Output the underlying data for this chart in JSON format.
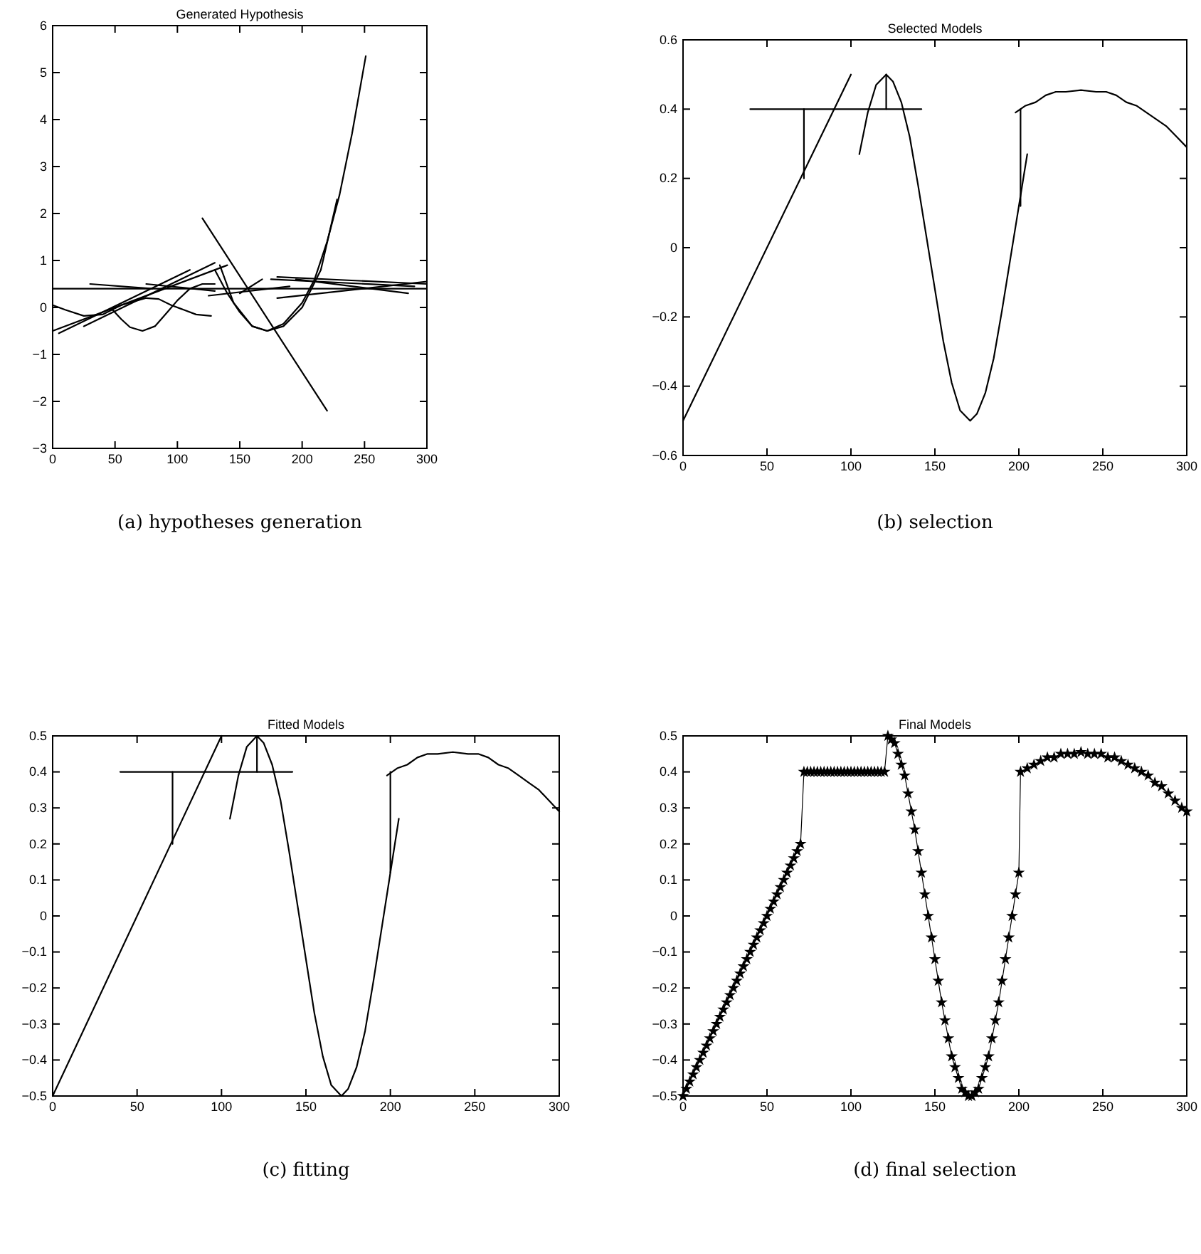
{
  "chart_data": [
    {
      "type": "line",
      "title": "Generated Hypothesis",
      "annotations": [
        "(a) hypotheses generation"
      ],
      "color": "#000000",
      "xlim": [
        0,
        300
      ],
      "xticks": [
        0,
        50,
        100,
        150,
        200,
        250,
        300
      ],
      "ylim": [
        -3,
        6
      ],
      "yticks": [
        {
          "value": -3,
          "label": "−3"
        },
        {
          "value": -2,
          "label": "−2"
        },
        {
          "value": -1,
          "label": "−1"
        },
        0,
        1,
        2,
        3,
        4,
        5,
        6
      ],
      "series": [
        {
          "x": [
            0,
            300
          ],
          "values": [
            0.4,
            0.4
          ]
        },
        {
          "x": [
            0,
            140
          ],
          "values": [
            -0.5,
            0.9
          ]
        },
        {
          "x": [
            5,
            110
          ],
          "values": [
            -0.55,
            0.8
          ]
        },
        {
          "x": [
            25,
            130
          ],
          "values": [
            -0.4,
            0.95
          ]
        },
        {
          "x": [
            48,
            55,
            62,
            72,
            82,
            92,
            100,
            110,
            120,
            130
          ],
          "values": [
            -0.05,
            -0.25,
            -0.42,
            -0.5,
            -0.4,
            -0.1,
            0.15,
            0.4,
            0.5,
            0.5
          ]
        },
        {
          "x": [
            0,
            10,
            25,
            40,
            55,
            75,
            85,
            95,
            105,
            115,
            127
          ],
          "values": [
            0.05,
            -0.05,
            -0.18,
            -0.15,
            0.05,
            0.2,
            0.18,
            0.05,
            -0.05,
            -0.15,
            -0.18
          ]
        },
        {
          "x": [
            120,
            220
          ],
          "values": [
            1.9,
            -2.2
          ]
        },
        {
          "x": [
            130,
            140,
            150,
            160,
            172,
            185,
            200,
            210,
            220,
            230,
            240,
            251
          ],
          "values": [
            0.8,
            0.3,
            -0.1,
            -0.4,
            -0.5,
            -0.35,
            0.1,
            0.6,
            1.4,
            2.4,
            3.7,
            5.35
          ]
        },
        {
          "x": [
            134,
            145,
            160,
            172,
            185,
            200,
            215,
            228
          ],
          "values": [
            0.9,
            0.1,
            -0.4,
            -0.5,
            -0.4,
            0,
            0.8,
            2.3
          ]
        },
        {
          "x": [
            30,
            80
          ],
          "values": [
            0.5,
            0.4
          ]
        },
        {
          "x": [
            75,
            130
          ],
          "values": [
            0.5,
            0.35
          ]
        },
        {
          "x": [
            125,
            190
          ],
          "values": [
            0.25,
            0.45
          ]
        },
        {
          "x": [
            150,
            168
          ],
          "values": [
            0.3,
            0.6
          ]
        },
        {
          "x": [
            180,
            300
          ],
          "values": [
            0.65,
            0.5
          ]
        },
        {
          "x": [
            175,
            290
          ],
          "values": [
            0.6,
            0.45
          ]
        },
        {
          "x": [
            195,
            285
          ],
          "values": [
            0.6,
            0.3
          ]
        },
        {
          "x": [
            180,
            300
          ],
          "values": [
            0.2,
            0.55
          ]
        }
      ]
    },
    {
      "type": "line",
      "title": "Selected Models",
      "annotations": [
        "(b) selection"
      ],
      "color": "#000000",
      "xlim": [
        0,
        300
      ],
      "xticks": [
        0,
        50,
        100,
        150,
        200,
        250,
        300
      ],
      "ylim": [
        -0.6,
        0.6
      ],
      "yticks": [
        {
          "value": -0.6,
          "label": "−0.6"
        },
        {
          "value": -0.4,
          "label": "−0.4"
        },
        {
          "value": -0.2,
          "label": "−0.2"
        },
        0,
        0.2,
        0.4,
        0.6
      ],
      "series": [
        {
          "x": [
            0,
            100
          ],
          "values": [
            -0.5,
            0.5
          ]
        },
        {
          "x": [
            40,
            142
          ],
          "values": [
            0.4,
            0.4
          ]
        },
        {
          "x": [
            72,
            72
          ],
          "values": [
            0.2,
            0.4
          ]
        },
        {
          "x": [
            121,
            121
          ],
          "values": [
            0.4,
            0.5
          ]
        },
        {
          "x": [
            105,
            110,
            115,
            121,
            125,
            130,
            135,
            140,
            145,
            150,
            155,
            160,
            165,
            171,
            175,
            180,
            185,
            190,
            195,
            200,
            205
          ],
          "values": [
            0.27,
            0.39,
            0.47,
            0.5,
            0.48,
            0.42,
            0.32,
            0.18,
            0.03,
            -0.12,
            -0.27,
            -0.39,
            -0.47,
            -0.5,
            -0.48,
            -0.42,
            -0.32,
            -0.18,
            -0.03,
            0.12,
            0.27
          ]
        },
        {
          "x": [
            201,
            201
          ],
          "values": [
            0.12,
            0.4
          ]
        },
        {
          "x": [
            198,
            204,
            210,
            216,
            222,
            228,
            237,
            246,
            252,
            258,
            264,
            270,
            276,
            282,
            288,
            294,
            300
          ],
          "values": [
            0.39,
            0.41,
            0.42,
            0.44,
            0.45,
            0.45,
            0.455,
            0.45,
            0.45,
            0.44,
            0.42,
            0.41,
            0.39,
            0.37,
            0.35,
            0.32,
            0.29
          ]
        }
      ]
    },
    {
      "type": "line",
      "title": "Fitted Models",
      "annotations": [
        "(c) fitting"
      ],
      "color": "#000000",
      "xlim": [
        0,
        300
      ],
      "xticks": [
        0,
        50,
        100,
        150,
        200,
        250,
        300
      ],
      "ylim": [
        -0.5,
        0.5
      ],
      "yticks": [
        {
          "value": -0.5,
          "label": "−0.5"
        },
        {
          "value": -0.4,
          "label": "−0.4"
        },
        {
          "value": -0.3,
          "label": "−0.3"
        },
        {
          "value": -0.2,
          "label": "−0.2"
        },
        {
          "value": -0.1,
          "label": "−0.1"
        },
        0,
        0.1,
        0.2,
        0.3,
        0.4,
        0.5
      ],
      "series": [
        {
          "x": [
            0,
            100
          ],
          "values": [
            -0.5,
            0.5
          ]
        },
        {
          "x": [
            40,
            142
          ],
          "values": [
            0.4,
            0.4
          ]
        },
        {
          "x": [
            71,
            71
          ],
          "values": [
            0.2,
            0.4
          ]
        },
        {
          "x": [
            121,
            121
          ],
          "values": [
            0.4,
            0.5
          ]
        },
        {
          "x": [
            105,
            110,
            115,
            121,
            125,
            130,
            135,
            140,
            145,
            150,
            155,
            160,
            165,
            171,
            175,
            180,
            185,
            190,
            195,
            200,
            205
          ],
          "values": [
            0.27,
            0.39,
            0.47,
            0.5,
            0.48,
            0.42,
            0.32,
            0.18,
            0.03,
            -0.12,
            -0.27,
            -0.39,
            -0.47,
            -0.5,
            -0.48,
            -0.42,
            -0.32,
            -0.18,
            -0.03,
            0.12,
            0.27
          ]
        },
        {
          "x": [
            200,
            200
          ],
          "values": [
            0.12,
            0.4
          ]
        },
        {
          "x": [
            198,
            204,
            210,
            216,
            222,
            228,
            237,
            246,
            252,
            258,
            264,
            270,
            276,
            282,
            288,
            294,
            300
          ],
          "values": [
            0.39,
            0.41,
            0.42,
            0.44,
            0.45,
            0.45,
            0.455,
            0.45,
            0.45,
            0.44,
            0.42,
            0.41,
            0.39,
            0.37,
            0.35,
            0.32,
            0.29
          ]
        }
      ]
    },
    {
      "type": "line",
      "title": "Final Models",
      "annotations": [
        "(d) final selection"
      ],
      "color": "#000000",
      "marker": "star",
      "xlim": [
        0,
        300
      ],
      "xticks": [
        0,
        50,
        100,
        150,
        200,
        250,
        300
      ],
      "ylim": [
        -0.5,
        0.5
      ],
      "yticks": [
        {
          "value": -0.5,
          "label": "−0.5"
        },
        {
          "value": -0.4,
          "label": "−0.4"
        },
        {
          "value": -0.3,
          "label": "−0.3"
        },
        {
          "value": -0.2,
          "label": "−0.2"
        },
        {
          "value": -0.1,
          "label": "−0.1"
        },
        0,
        0.1,
        0.2,
        0.3,
        0.4,
        0.5
      ],
      "series": [
        {
          "x": [
            0,
            2,
            4,
            6,
            8,
            10,
            12,
            14,
            16,
            18,
            20,
            22,
            24,
            26,
            28,
            30,
            32,
            34,
            36,
            38,
            40,
            42,
            44,
            46,
            48,
            50,
            52,
            54,
            56,
            58,
            60,
            62,
            64,
            66,
            68,
            70,
            72,
            74,
            76,
            78,
            80,
            82,
            84,
            86,
            88,
            90,
            92,
            94,
            96,
            98,
            100,
            102,
            104,
            106,
            108,
            110,
            112,
            114,
            116,
            118,
            120,
            122,
            124,
            126,
            128,
            130,
            132,
            134,
            136,
            138,
            140,
            142,
            144,
            146,
            148,
            150,
            152,
            154,
            156,
            158,
            160,
            162,
            164,
            166,
            168,
            170,
            172,
            174,
            176,
            178,
            180,
            182,
            184,
            186,
            188,
            190,
            192,
            194,
            196,
            198,
            200,
            201,
            205,
            209,
            213,
            217,
            221,
            225,
            229,
            233,
            237,
            241,
            245,
            249,
            253,
            257,
            261,
            265,
            269,
            273,
            277,
            281,
            285,
            289,
            293,
            297,
            300
          ],
          "values": [
            -0.5,
            -0.48,
            -0.46,
            -0.44,
            -0.42,
            -0.4,
            -0.38,
            -0.36,
            -0.34,
            -0.32,
            -0.3,
            -0.28,
            -0.26,
            -0.24,
            -0.22,
            -0.2,
            -0.18,
            -0.16,
            -0.14,
            -0.12,
            -0.1,
            -0.08,
            -0.06,
            -0.04,
            -0.02,
            0,
            0.02,
            0.04,
            0.06,
            0.08,
            0.1,
            0.12,
            0.14,
            0.16,
            0.18,
            0.2,
            0.4,
            0.4,
            0.4,
            0.4,
            0.4,
            0.4,
            0.4,
            0.4,
            0.4,
            0.4,
            0.4,
            0.4,
            0.4,
            0.4,
            0.4,
            0.4,
            0.4,
            0.4,
            0.4,
            0.4,
            0.4,
            0.4,
            0.4,
            0.4,
            0.4,
            0.5,
            0.49,
            0.48,
            0.45,
            0.42,
            0.39,
            0.34,
            0.29,
            0.24,
            0.18,
            0.12,
            0.06,
            0,
            -0.06,
            -0.12,
            -0.18,
            -0.24,
            -0.29,
            -0.34,
            -0.39,
            -0.42,
            -0.45,
            -0.48,
            -0.49,
            -0.5,
            -0.5,
            -0.49,
            -0.48,
            -0.45,
            -0.42,
            -0.39,
            -0.34,
            -0.29,
            -0.24,
            -0.18,
            -0.12,
            -0.06,
            0,
            0.06,
            0.12,
            0.4,
            0.41,
            0.42,
            0.43,
            0.44,
            0.44,
            0.45,
            0.45,
            0.45,
            0.455,
            0.45,
            0.45,
            0.45,
            0.44,
            0.44,
            0.43,
            0.42,
            0.41,
            0.4,
            0.39,
            0.37,
            0.36,
            0.34,
            0.32,
            0.3,
            0.29
          ]
        }
      ]
    }
  ]
}
